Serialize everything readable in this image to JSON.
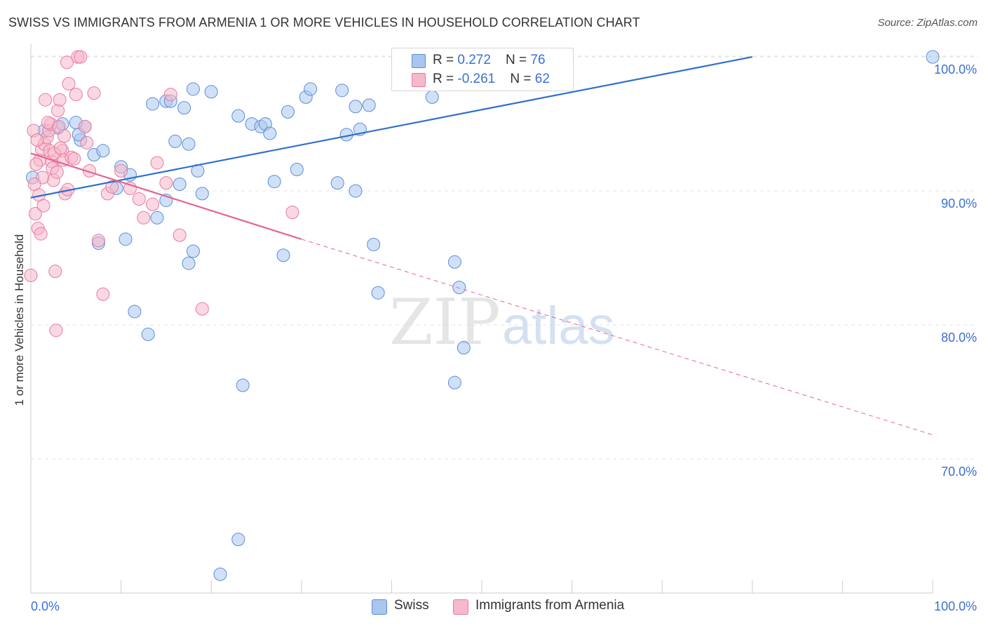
{
  "header": {
    "title": "SWISS VS IMMIGRANTS FROM ARMENIA 1 OR MORE VEHICLES IN HOUSEHOLD CORRELATION CHART",
    "source": "Source: ZipAtlas.com"
  },
  "legend": {
    "rows": [
      {
        "r_label": "R = ",
        "r_value": "0.272",
        "n_label": "N = ",
        "n_value": "76"
      },
      {
        "r_label": "R = ",
        "r_value": "-0.261",
        "n_label": "N = ",
        "n_value": "62"
      }
    ],
    "bottom": [
      "Swiss",
      "Immigrants from Armenia"
    ]
  },
  "watermark": {
    "part1": "ZIP",
    "part2": "atlas"
  },
  "colors": {
    "swiss_fill": "#a9c6ee",
    "swiss_stroke": "#5b8ed8",
    "swiss_line": "#2f6fd0",
    "armenia_fill": "#f6b8cb",
    "armenia_stroke": "#e77aa0",
    "armenia_line": "#e36592",
    "tick_label": "#3a6fd6",
    "grid": "#e3e3e3"
  },
  "chart_data": {
    "type": "scatter",
    "title": "SWISS VS IMMIGRANTS FROM ARMENIA 1 OR MORE VEHICLES IN HOUSEHOLD CORRELATION CHART",
    "xlabel": "",
    "ylabel": "1 or more Vehicles in Household",
    "xlim": [
      0,
      100
    ],
    "ylim": [
      60,
      101
    ],
    "x_ticks": [
      0,
      10,
      20,
      30,
      40,
      50,
      60,
      70,
      80,
      90,
      100
    ],
    "x_tick_labels": [
      "0.0%",
      "100.0%"
    ],
    "y_ticks": [
      70,
      80,
      90,
      100
    ],
    "y_tick_labels": [
      "70.0%",
      "80.0%",
      "90.0%",
      "100.0%"
    ],
    "grid": true,
    "series": [
      {
        "name": "Swiss",
        "points": [
          [
            0.2,
            91.0
          ],
          [
            1.5,
            94.5
          ],
          [
            3.0,
            94.7
          ],
          [
            3.5,
            95.0
          ],
          [
            5.5,
            93.8
          ],
          [
            6.0,
            94.8
          ],
          [
            5.0,
            95.1
          ],
          [
            5.3,
            94.2
          ],
          [
            7.0,
            92.7
          ],
          [
            8.0,
            93.0
          ],
          [
            9.5,
            90.2
          ],
          [
            10.0,
            91.8
          ],
          [
            11.0,
            91.2
          ],
          [
            7.5,
            86.1
          ],
          [
            10.5,
            86.4
          ],
          [
            11.5,
            81.0
          ],
          [
            13.0,
            79.3
          ],
          [
            14.0,
            88.0
          ],
          [
            15.0,
            96.7
          ],
          [
            15.5,
            96.7
          ],
          [
            13.5,
            96.5
          ],
          [
            17.0,
            96.2
          ],
          [
            18.0,
            97.6
          ],
          [
            20.0,
            97.4
          ],
          [
            18.5,
            91.5
          ],
          [
            16.5,
            90.5
          ],
          [
            15.0,
            89.3
          ],
          [
            19.0,
            89.8
          ],
          [
            18.0,
            85.5
          ],
          [
            17.5,
            84.6
          ],
          [
            16.0,
            93.7
          ],
          [
            17.5,
            93.5
          ],
          [
            23.0,
            95.6
          ],
          [
            24.5,
            95.0
          ],
          [
            25.5,
            94.8
          ],
          [
            26.0,
            95.0
          ],
          [
            26.5,
            94.3
          ],
          [
            28.5,
            95.9
          ],
          [
            30.5,
            97.0
          ],
          [
            31.0,
            97.6
          ],
          [
            29.5,
            91.6
          ],
          [
            27.0,
            90.7
          ],
          [
            28.0,
            85.2
          ],
          [
            34.0,
            90.6
          ],
          [
            36.0,
            90.0
          ],
          [
            34.5,
            97.5
          ],
          [
            36.0,
            96.3
          ],
          [
            35.0,
            94.2
          ],
          [
            36.5,
            94.6
          ],
          [
            37.5,
            96.4
          ],
          [
            38.0,
            86.0
          ],
          [
            38.5,
            82.4
          ],
          [
            41.0,
            100.0
          ],
          [
            43.0,
            100.0
          ],
          [
            44.0,
            100.0
          ],
          [
            46.5,
            100.0
          ],
          [
            47.5,
            100.0
          ],
          [
            48.0,
            100.0
          ],
          [
            49.0,
            100.0
          ],
          [
            50.5,
            100.0
          ],
          [
            41.0,
            98.3
          ],
          [
            44.5,
            97.0
          ],
          [
            47.5,
            82.8
          ],
          [
            48.0,
            78.3
          ],
          [
            47.0,
            84.7
          ],
          [
            47.0,
            75.7
          ],
          [
            52.0,
            100.0
          ],
          [
            55.0,
            100.0
          ],
          [
            56.5,
            100.0
          ],
          [
            58.0,
            100.0
          ],
          [
            50.5,
            100.0
          ],
          [
            57.5,
            100.0
          ],
          [
            23.5,
            75.5
          ],
          [
            23.0,
            64.0
          ],
          [
            21.0,
            61.4
          ],
          [
            100.0,
            100.0
          ]
        ]
      },
      {
        "name": "Immigrants from Armenia",
        "points": [
          [
            0.0,
            83.7
          ],
          [
            0.5,
            88.3
          ],
          [
            0.8,
            87.2
          ],
          [
            1.0,
            92.3
          ],
          [
            1.2,
            93.1
          ],
          [
            1.5,
            93.5
          ],
          [
            1.8,
            94.0
          ],
          [
            2.0,
            94.5
          ],
          [
            2.2,
            95.0
          ],
          [
            2.3,
            92.2
          ],
          [
            2.4,
            91.7
          ],
          [
            2.5,
            90.8
          ],
          [
            2.7,
            84.0
          ],
          [
            2.8,
            79.6
          ],
          [
            3.0,
            96.0
          ],
          [
            3.2,
            96.8
          ],
          [
            3.5,
            93.0
          ],
          [
            3.6,
            92.3
          ],
          [
            3.8,
            89.8
          ],
          [
            4.0,
            99.6
          ],
          [
            4.2,
            98.0
          ],
          [
            4.5,
            92.5
          ],
          [
            4.8,
            92.4
          ],
          [
            5.0,
            97.2
          ],
          [
            5.2,
            100.0
          ],
          [
            5.5,
            100.0
          ],
          [
            6.0,
            94.8
          ],
          [
            6.2,
            93.6
          ],
          [
            6.5,
            91.5
          ],
          [
            7.0,
            97.3
          ],
          [
            7.5,
            86.3
          ],
          [
            8.0,
            82.3
          ],
          [
            8.5,
            89.8
          ],
          [
            9.0,
            90.3
          ],
          [
            10.0,
            91.5
          ],
          [
            11.0,
            90.2
          ],
          [
            12.0,
            89.4
          ],
          [
            12.5,
            88.0
          ],
          [
            13.5,
            89.0
          ],
          [
            14.0,
            92.1
          ],
          [
            15.0,
            90.6
          ],
          [
            15.5,
            97.2
          ],
          [
            16.5,
            86.7
          ],
          [
            19.0,
            81.2
          ],
          [
            29.0,
            88.4
          ],
          [
            0.3,
            94.5
          ],
          [
            0.6,
            92.0
          ],
          [
            1.3,
            91.0
          ],
          [
            1.6,
            96.8
          ],
          [
            1.9,
            95.1
          ],
          [
            2.1,
            93.0
          ],
          [
            2.6,
            92.8
          ],
          [
            3.1,
            94.8
          ],
          [
            3.3,
            93.2
          ],
          [
            0.4,
            90.5
          ],
          [
            0.9,
            89.7
          ],
          [
            1.1,
            86.8
          ],
          [
            1.4,
            88.9
          ],
          [
            4.1,
            90.1
          ],
          [
            0.7,
            93.8
          ],
          [
            2.9,
            91.4
          ],
          [
            3.7,
            94.1
          ]
        ]
      }
    ],
    "trendlines": [
      {
        "series": "Swiss",
        "x": [
          0,
          80
        ],
        "y": [
          89.5,
          100.0
        ],
        "style": "solid"
      },
      {
        "series": "Immigrants from Armenia",
        "x": [
          0,
          30
        ],
        "y": [
          92.8,
          86.4
        ],
        "style": "solid"
      },
      {
        "series": "Immigrants from Armenia",
        "x": [
          30,
          100
        ],
        "y": [
          86.4,
          71.8
        ],
        "style": "dashed"
      }
    ]
  }
}
